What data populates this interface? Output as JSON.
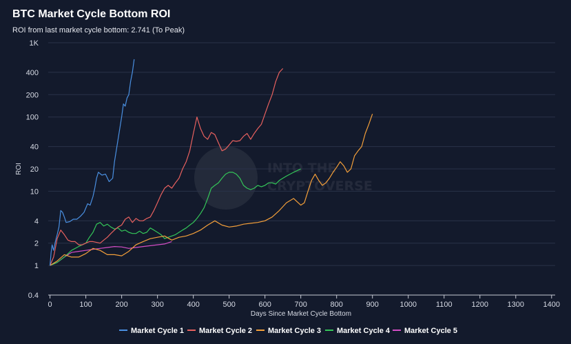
{
  "chart_data": {
    "type": "line",
    "title": "BTC Market Cycle Bottom ROI",
    "subtitle": "ROI from last market cycle bottom: 2.741 (To Peak)",
    "xlabel": "Days Since Market Cycle Bottom",
    "ylabel": "ROI",
    "xlim": [
      -5,
      1410
    ],
    "ylim": [
      0.4,
      1000
    ],
    "yscale": "log",
    "xticks": [
      0,
      100,
      200,
      300,
      400,
      500,
      600,
      700,
      800,
      900,
      1000,
      1100,
      1200,
      1300,
      1400
    ],
    "yticks": [
      {
        "value": 0.4,
        "label": "0.4"
      },
      {
        "value": 1,
        "label": "1"
      },
      {
        "value": 2,
        "label": "2"
      },
      {
        "value": 4,
        "label": "4"
      },
      {
        "value": 10,
        "label": "10"
      },
      {
        "value": 20,
        "label": "20"
      },
      {
        "value": 40,
        "label": "40"
      },
      {
        "value": 100,
        "label": "100"
      },
      {
        "value": 200,
        "label": "200"
      },
      {
        "value": 400,
        "label": "400"
      },
      {
        "value": 1000,
        "label": "1K"
      }
    ],
    "grid": true,
    "legend_position": "bottom",
    "watermark": "INTO THE CRYPTOVERSE",
    "series": [
      {
        "name": "Market Cycle 1",
        "color": "#4a90e2",
        "points": [
          [
            0,
            1
          ],
          [
            3,
            1.5
          ],
          [
            6,
            1.9
          ],
          [
            10,
            1.6
          ],
          [
            15,
            2.1
          ],
          [
            20,
            2.6
          ],
          [
            25,
            3.3
          ],
          [
            30,
            5.5
          ],
          [
            35,
            5.2
          ],
          [
            40,
            4.5
          ],
          [
            45,
            3.8
          ],
          [
            55,
            3.9
          ],
          [
            65,
            4.2
          ],
          [
            75,
            4.2
          ],
          [
            85,
            4.6
          ],
          [
            95,
            5.2
          ],
          [
            105,
            6.8
          ],
          [
            112,
            6.5
          ],
          [
            120,
            8.5
          ],
          [
            125,
            11
          ],
          [
            130,
            15
          ],
          [
            135,
            18
          ],
          [
            145,
            16.5
          ],
          [
            155,
            17
          ],
          [
            165,
            13.5
          ],
          [
            175,
            15
          ],
          [
            180,
            25
          ],
          [
            190,
            50
          ],
          [
            200,
            100
          ],
          [
            205,
            150
          ],
          [
            210,
            140
          ],
          [
            215,
            180
          ],
          [
            220,
            200
          ],
          [
            225,
            300
          ],
          [
            230,
            400
          ],
          [
            235,
            600
          ]
        ]
      },
      {
        "name": "Market Cycle 2",
        "color": "#e8615f",
        "points": [
          [
            0,
            1
          ],
          [
            10,
            1.3
          ],
          [
            20,
            2.3
          ],
          [
            30,
            3
          ],
          [
            40,
            2.6
          ],
          [
            50,
            2.2
          ],
          [
            60,
            2.1
          ],
          [
            70,
            2.1
          ],
          [
            80,
            1.9
          ],
          [
            90,
            1.9
          ],
          [
            100,
            2
          ],
          [
            110,
            2.1
          ],
          [
            120,
            2.1
          ],
          [
            130,
            2.05
          ],
          [
            140,
            2
          ],
          [
            150,
            2.2
          ],
          [
            160,
            2.4
          ],
          [
            170,
            2.7
          ],
          [
            180,
            3
          ],
          [
            190,
            3.3
          ],
          [
            200,
            3.5
          ],
          [
            210,
            4.2
          ],
          [
            220,
            4.5
          ],
          [
            230,
            3.8
          ],
          [
            240,
            4.3
          ],
          [
            250,
            4
          ],
          [
            260,
            4
          ],
          [
            270,
            4.3
          ],
          [
            280,
            4.5
          ],
          [
            290,
            5.5
          ],
          [
            300,
            7
          ],
          [
            310,
            9
          ],
          [
            320,
            11
          ],
          [
            330,
            12
          ],
          [
            340,
            11
          ],
          [
            350,
            13
          ],
          [
            360,
            15
          ],
          [
            370,
            20
          ],
          [
            380,
            25
          ],
          [
            390,
            35
          ],
          [
            400,
            60
          ],
          [
            410,
            100
          ],
          [
            420,
            70
          ],
          [
            430,
            55
          ],
          [
            440,
            50
          ],
          [
            450,
            62
          ],
          [
            460,
            58
          ],
          [
            470,
            45
          ],
          [
            480,
            35
          ],
          [
            490,
            37
          ],
          [
            500,
            42
          ],
          [
            510,
            48
          ],
          [
            520,
            47
          ],
          [
            530,
            48
          ],
          [
            540,
            55
          ],
          [
            550,
            60
          ],
          [
            560,
            50
          ],
          [
            570,
            60
          ],
          [
            580,
            70
          ],
          [
            590,
            80
          ],
          [
            600,
            110
          ],
          [
            610,
            150
          ],
          [
            620,
            200
          ],
          [
            630,
            300
          ],
          [
            640,
            400
          ],
          [
            650,
            450
          ]
        ]
      },
      {
        "name": "Market Cycle 3",
        "color": "#f5a03a",
        "points": [
          [
            0,
            1
          ],
          [
            20,
            1.15
          ],
          [
            40,
            1.4
          ],
          [
            60,
            1.3
          ],
          [
            80,
            1.3
          ],
          [
            100,
            1.45
          ],
          [
            120,
            1.7
          ],
          [
            140,
            1.6
          ],
          [
            160,
            1.4
          ],
          [
            180,
            1.4
          ],
          [
            200,
            1.35
          ],
          [
            220,
            1.55
          ],
          [
            240,
            1.9
          ],
          [
            260,
            2.1
          ],
          [
            280,
            2.3
          ],
          [
            300,
            2.4
          ],
          [
            320,
            2.5
          ],
          [
            340,
            2.2
          ],
          [
            360,
            2.4
          ],
          [
            380,
            2.5
          ],
          [
            400,
            2.7
          ],
          [
            420,
            3
          ],
          [
            440,
            3.5
          ],
          [
            460,
            4
          ],
          [
            480,
            3.5
          ],
          [
            500,
            3.3
          ],
          [
            520,
            3.4
          ],
          [
            540,
            3.6
          ],
          [
            560,
            3.7
          ],
          [
            580,
            3.8
          ],
          [
            600,
            4
          ],
          [
            620,
            4.5
          ],
          [
            640,
            5.5
          ],
          [
            660,
            7
          ],
          [
            680,
            8
          ],
          [
            700,
            6.5
          ],
          [
            710,
            7
          ],
          [
            720,
            10
          ],
          [
            730,
            14
          ],
          [
            740,
            17
          ],
          [
            750,
            14
          ],
          [
            760,
            12
          ],
          [
            770,
            13
          ],
          [
            780,
            15
          ],
          [
            790,
            18
          ],
          [
            800,
            21
          ],
          [
            810,
            25
          ],
          [
            820,
            22
          ],
          [
            830,
            18
          ],
          [
            840,
            20
          ],
          [
            850,
            30
          ],
          [
            860,
            35
          ],
          [
            870,
            40
          ],
          [
            880,
            60
          ],
          [
            890,
            80
          ],
          [
            900,
            110
          ]
        ]
      },
      {
        "name": "Market Cycle 4",
        "color": "#34c759",
        "points": [
          [
            0,
            1
          ],
          [
            20,
            1.1
          ],
          [
            40,
            1.3
          ],
          [
            60,
            1.6
          ],
          [
            80,
            1.8
          ],
          [
            100,
            2
          ],
          [
            110,
            2.4
          ],
          [
            120,
            2.8
          ],
          [
            130,
            3.6
          ],
          [
            140,
            3.8
          ],
          [
            150,
            3.4
          ],
          [
            160,
            3.6
          ],
          [
            170,
            3.3
          ],
          [
            180,
            3.1
          ],
          [
            190,
            3.2
          ],
          [
            200,
            2.9
          ],
          [
            210,
            3
          ],
          [
            220,
            2.8
          ],
          [
            230,
            2.7
          ],
          [
            240,
            2.7
          ],
          [
            250,
            2.9
          ],
          [
            260,
            2.7
          ],
          [
            270,
            2.8
          ],
          [
            280,
            3.2
          ],
          [
            290,
            3
          ],
          [
            300,
            2.8
          ],
          [
            310,
            2.6
          ],
          [
            320,
            2.3
          ],
          [
            330,
            2.4
          ],
          [
            340,
            2.5
          ],
          [
            350,
            2.6
          ],
          [
            360,
            2.8
          ],
          [
            370,
            3
          ],
          [
            380,
            3.2
          ],
          [
            390,
            3.5
          ],
          [
            400,
            3.8
          ],
          [
            410,
            4.3
          ],
          [
            420,
            5
          ],
          [
            430,
            6
          ],
          [
            440,
            8
          ],
          [
            450,
            11
          ],
          [
            460,
            12
          ],
          [
            470,
            13
          ],
          [
            480,
            15
          ],
          [
            490,
            17
          ],
          [
            500,
            18
          ],
          [
            510,
            18
          ],
          [
            520,
            17
          ],
          [
            530,
            15
          ],
          [
            540,
            12
          ],
          [
            550,
            11
          ],
          [
            560,
            10.5
          ],
          [
            570,
            11
          ],
          [
            580,
            12
          ],
          [
            590,
            11.5
          ],
          [
            600,
            12
          ],
          [
            610,
            13
          ],
          [
            620,
            13
          ],
          [
            630,
            12.5
          ],
          [
            640,
            14
          ],
          [
            650,
            15
          ],
          [
            660,
            16
          ],
          [
            670,
            17
          ],
          [
            680,
            18
          ],
          [
            690,
            19
          ],
          [
            700,
            20
          ]
        ]
      },
      {
        "name": "Market Cycle 5",
        "color": "#d64ec7",
        "points": [
          [
            0,
            1
          ],
          [
            20,
            1.1
          ],
          [
            40,
            1.3
          ],
          [
            60,
            1.5
          ],
          [
            80,
            1.55
          ],
          [
            100,
            1.6
          ],
          [
            120,
            1.65
          ],
          [
            140,
            1.7
          ],
          [
            160,
            1.75
          ],
          [
            180,
            1.8
          ],
          [
            200,
            1.78
          ],
          [
            220,
            1.7
          ],
          [
            240,
            1.75
          ],
          [
            260,
            1.8
          ],
          [
            280,
            1.85
          ],
          [
            300,
            1.9
          ],
          [
            320,
            1.95
          ],
          [
            340,
            2.1
          ]
        ]
      }
    ]
  }
}
